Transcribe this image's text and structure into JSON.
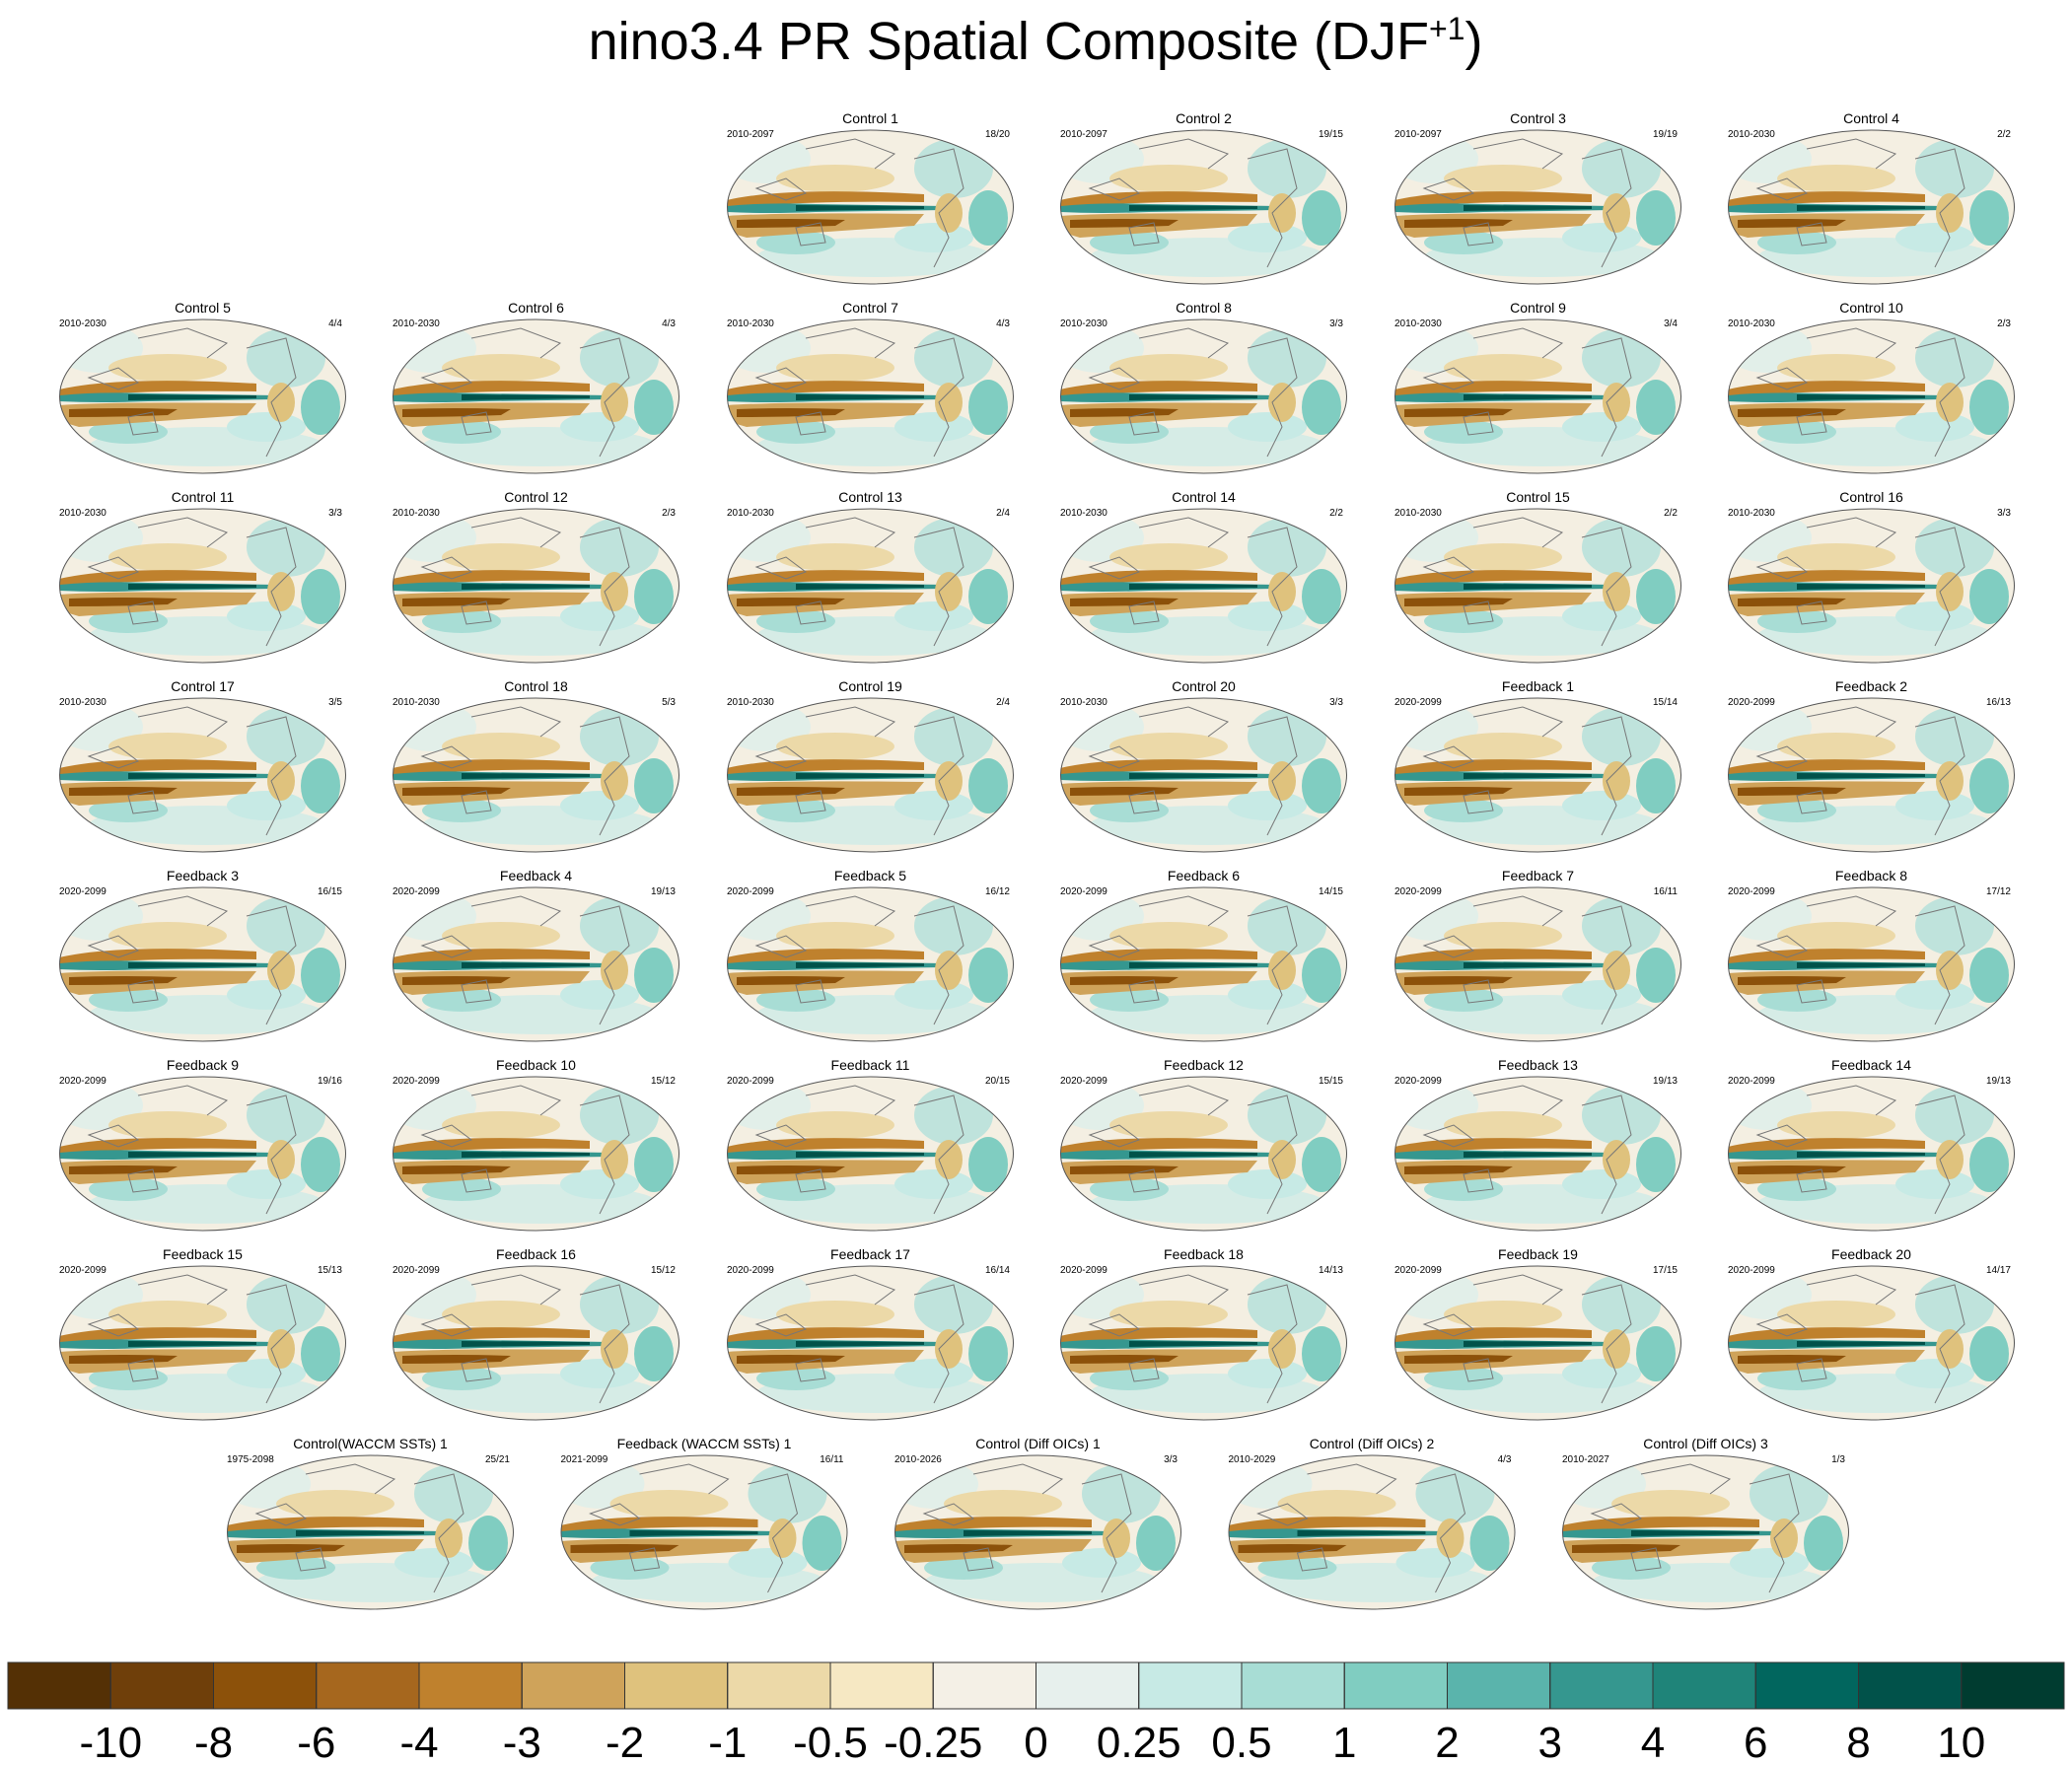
{
  "chart_data": {
    "type": "map-panels",
    "title": {
      "text": "nino3.4 PR Spatial Composite (DJF",
      "superscript": "+1",
      "suffix": ")"
    },
    "panels": [
      {
        "title": "Control 1",
        "period": "2010-2097",
        "count": "18/20"
      },
      {
        "title": "Control 2",
        "period": "2010-2097",
        "count": "19/15"
      },
      {
        "title": "Control 3",
        "period": "2010-2097",
        "count": "19/19"
      },
      {
        "title": "Control 4",
        "period": "2010-2030",
        "count": "2/2"
      },
      {
        "title": "Control 5",
        "period": "2010-2030",
        "count": "4/4"
      },
      {
        "title": "Control 6",
        "period": "2010-2030",
        "count": "4/3"
      },
      {
        "title": "Control 7",
        "period": "2010-2030",
        "count": "4/3"
      },
      {
        "title": "Control 8",
        "period": "2010-2030",
        "count": "3/3"
      },
      {
        "title": "Control 9",
        "period": "2010-2030",
        "count": "3/4"
      },
      {
        "title": "Control 10",
        "period": "2010-2030",
        "count": "2/3"
      },
      {
        "title": "Control 11",
        "period": "2010-2030",
        "count": "3/3"
      },
      {
        "title": "Control 12",
        "period": "2010-2030",
        "count": "2/3"
      },
      {
        "title": "Control 13",
        "period": "2010-2030",
        "count": "2/4"
      },
      {
        "title": "Control 14",
        "period": "2010-2030",
        "count": "2/2"
      },
      {
        "title": "Control 15",
        "period": "2010-2030",
        "count": "2/2"
      },
      {
        "title": "Control 16",
        "period": "2010-2030",
        "count": "3/3"
      },
      {
        "title": "Control 17",
        "period": "2010-2030",
        "count": "3/5"
      },
      {
        "title": "Control 18",
        "period": "2010-2030",
        "count": "5/3"
      },
      {
        "title": "Control 19",
        "period": "2010-2030",
        "count": "2/4"
      },
      {
        "title": "Control 20",
        "period": "2010-2030",
        "count": "3/3"
      },
      {
        "title": "Feedback 1",
        "period": "2020-2099",
        "count": "15/14"
      },
      {
        "title": "Feedback 2",
        "period": "2020-2099",
        "count": "16/13"
      },
      {
        "title": "Feedback 3",
        "period": "2020-2099",
        "count": "16/15"
      },
      {
        "title": "Feedback 4",
        "period": "2020-2099",
        "count": "19/13"
      },
      {
        "title": "Feedback 5",
        "period": "2020-2099",
        "count": "16/12"
      },
      {
        "title": "Feedback 6",
        "period": "2020-2099",
        "count": "14/15"
      },
      {
        "title": "Feedback 7",
        "period": "2020-2099",
        "count": "16/11"
      },
      {
        "title": "Feedback 8",
        "period": "2020-2099",
        "count": "17/12"
      },
      {
        "title": "Feedback 9",
        "period": "2020-2099",
        "count": "19/16"
      },
      {
        "title": "Feedback 10",
        "period": "2020-2099",
        "count": "15/12"
      },
      {
        "title": "Feedback 11",
        "period": "2020-2099",
        "count": "20/15"
      },
      {
        "title": "Feedback 12",
        "period": "2020-2099",
        "count": "15/15"
      },
      {
        "title": "Feedback 13",
        "period": "2020-2099",
        "count": "19/13"
      },
      {
        "title": "Feedback 14",
        "period": "2020-2099",
        "count": "19/13"
      },
      {
        "title": "Feedback 15",
        "period": "2020-2099",
        "count": "15/13"
      },
      {
        "title": "Feedback 16",
        "period": "2020-2099",
        "count": "15/12"
      },
      {
        "title": "Feedback 17",
        "period": "2020-2099",
        "count": "16/14"
      },
      {
        "title": "Feedback 18",
        "period": "2020-2099",
        "count": "14/13"
      },
      {
        "title": "Feedback 19",
        "period": "2020-2099",
        "count": "17/15"
      },
      {
        "title": "Feedback 20",
        "period": "2020-2099",
        "count": "14/17"
      },
      {
        "title": "Control(WACCM SSTs) 1",
        "period": "1975-2098",
        "count": "25/21"
      },
      {
        "title": "Feedback (WACCM SSTs) 1",
        "period": "2021-2099",
        "count": "16/11"
      },
      {
        "title": "Control (Diff OICs) 1",
        "period": "2010-2026",
        "count": "3/3"
      },
      {
        "title": "Control (Diff OICs) 2",
        "period": "2010-2029",
        "count": "4/3"
      },
      {
        "title": "Control (Diff OICs) 3",
        "period": "2010-2027",
        "count": "1/3"
      }
    ],
    "colorbar": {
      "levels": [
        -10,
        -8,
        -6,
        -4,
        -3,
        -2,
        -1,
        -0.5,
        -0.25,
        0,
        0.25,
        0.5,
        1,
        2,
        3,
        4,
        6,
        8,
        10
      ],
      "colors": [
        "#543005",
        "#6f3f0a",
        "#8c510a",
        "#a6671e",
        "#bf812d",
        "#cfa35a",
        "#dfc27d",
        "#ecd9a8",
        "#f6e8c3",
        "#f4f0e6",
        "#e7f0ed",
        "#c7eae5",
        "#a8ddd5",
        "#80cdc1",
        "#5ab4ac",
        "#35978f",
        "#1f8479",
        "#01665e",
        "#01524a",
        "#003c30"
      ]
    }
  }
}
